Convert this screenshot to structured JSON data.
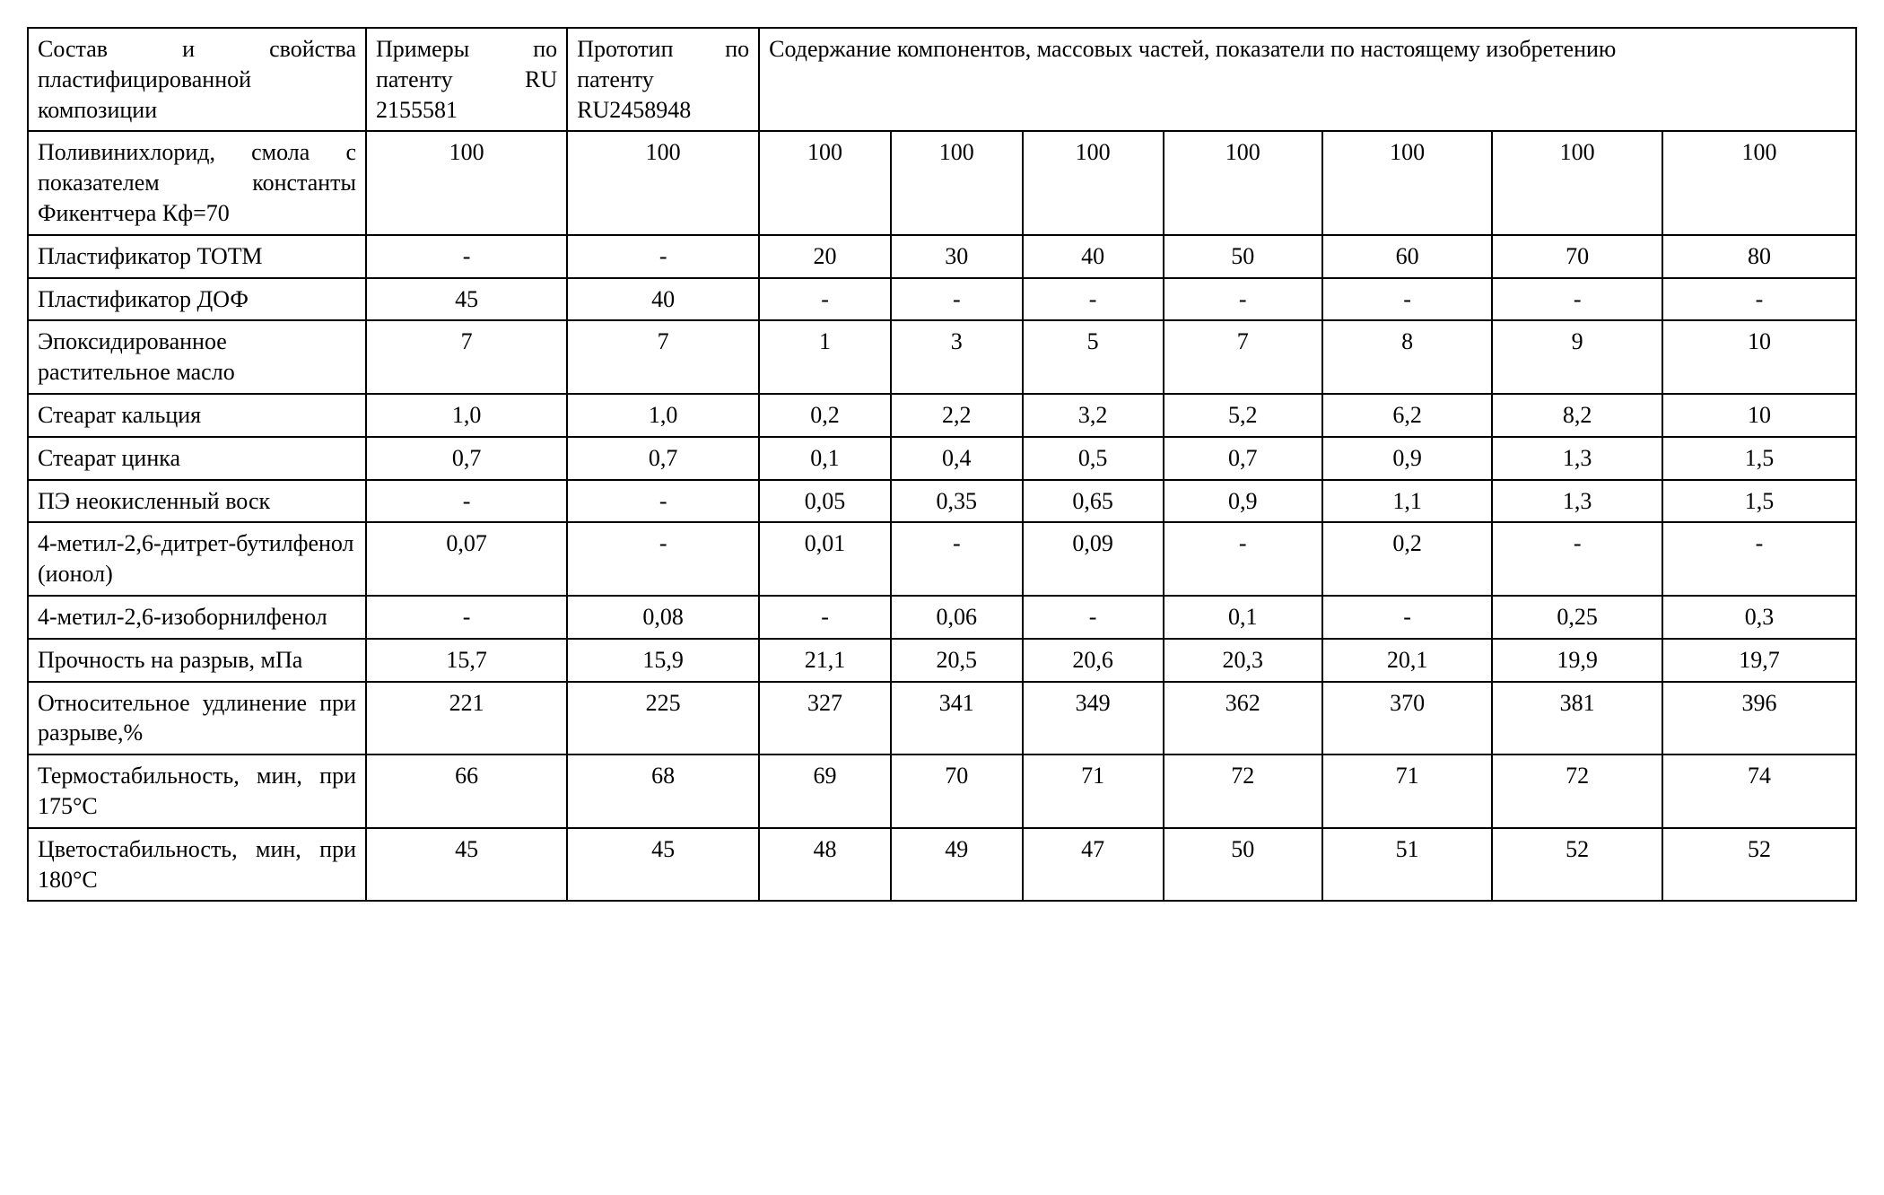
{
  "table": {
    "col_widths_pct": [
      18.5,
      11,
      10.5,
      7.2,
      7.2,
      7.7,
      8.7,
      9.3,
      9.3,
      10.6
    ],
    "header": {
      "h1": "Состав и свойства пластифицированной композиции",
      "h2": "Примеры по патенту RU 2155581",
      "h3": "Прототип по патенту RU2458948",
      "h4": "Содержание компонентов, массовых частей, показатели по настоящему изобретению"
    },
    "rows": [
      {
        "label": "Поливинихлорид, смола с показателем константы Фикентчера Кф=70",
        "cells": [
          "100",
          "100",
          "100",
          "100",
          "100",
          "100",
          "100",
          "100",
          "100"
        ]
      },
      {
        "label": "Пластификатор ТОТМ",
        "cells": [
          "-",
          "-",
          "20",
          "30",
          "40",
          "50",
          "60",
          "70",
          "80"
        ]
      },
      {
        "label": "Пластификатор ДОФ",
        "cells": [
          "45",
          "40",
          "-",
          "-",
          "-",
          "-",
          "-",
          "-",
          "-"
        ]
      },
      {
        "label": "Эпоксидированное растительное масло",
        "cells": [
          "7",
          "7",
          "1",
          "3",
          "5",
          "7",
          "8",
          "9",
          "10"
        ]
      },
      {
        "label": "Стеарат кальция",
        "cells": [
          "1,0",
          "1,0",
          "0,2",
          "2,2",
          "3,2",
          "5,2",
          "6,2",
          "8,2",
          "10"
        ]
      },
      {
        "label": "Стеарат цинка",
        "cells": [
          "0,7",
          "0,7",
          "0,1",
          "0,4",
          "0,5",
          "0,7",
          "0,9",
          "1,3",
          "1,5"
        ]
      },
      {
        "label": "ПЭ неокисленный воск",
        "cells": [
          "-",
          "-",
          "0,05",
          "0,35",
          "0,65",
          "0,9",
          "1,1",
          "1,3",
          "1,5"
        ]
      },
      {
        "label": "4-метил-2,6-дитрет-бутилфенол (ионол)",
        "cells": [
          "0,07",
          "-",
          "0,01",
          "-",
          "0,09",
          "-",
          "0,2",
          "-",
          "-"
        ]
      },
      {
        "label": "4-метил-2,6-изоборнилфенол",
        "cells": [
          "-",
          "0,08",
          "-",
          "0,06",
          "-",
          "0,1",
          "-",
          "0,25",
          "0,3"
        ]
      },
      {
        "label": "Прочность на разрыв, мПа",
        "cells": [
          "15,7",
          "15,9",
          "21,1",
          "20,5",
          "20,6",
          "20,3",
          "20,1",
          "19,9",
          "19,7"
        ]
      },
      {
        "label": "Относительное удлинение при разрыве,%",
        "cells": [
          "221",
          "225",
          "327",
          "341",
          "349",
          "362",
          "370",
          "381",
          "396"
        ]
      },
      {
        "label": "Термостабильность, мин, при 175°С",
        "cells": [
          "66",
          "68",
          "69",
          "70",
          "71",
          "72",
          "71",
          "72",
          "74"
        ]
      },
      {
        "label": "Цветостабильность, мин, при 180°С",
        "cells": [
          "45",
          "45",
          "48",
          "49",
          "47",
          "50",
          "51",
          "52",
          "52"
        ]
      }
    ]
  }
}
